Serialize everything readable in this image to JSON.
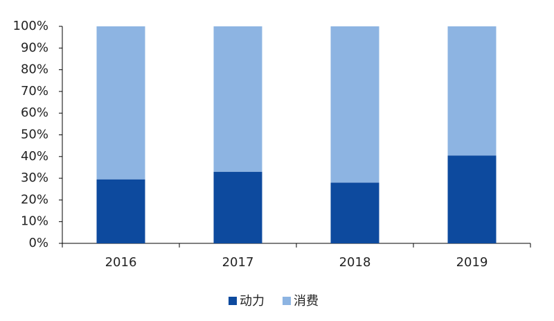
{
  "chart_data": {
    "type": "stacked_bar",
    "categories": [
      "2016",
      "2017",
      "2018",
      "2019"
    ],
    "series": [
      {
        "name": "动力",
        "color": "#0d4a9e",
        "values": [
          29.5,
          33,
          28,
          40.5
        ]
      },
      {
        "name": "消费",
        "color": "#8db4e2",
        "values": [
          70.5,
          67,
          72,
          59.5
        ]
      }
    ],
    "ylim": [
      0,
      100
    ],
    "yticks": [
      {
        "value": 0,
        "label": "0%"
      },
      {
        "value": 10,
        "label": "10%"
      },
      {
        "value": 20,
        "label": "20%"
      },
      {
        "value": 30,
        "label": "30%"
      },
      {
        "value": 40,
        "label": "40%"
      },
      {
        "value": 50,
        "label": "50%"
      },
      {
        "value": 60,
        "label": "60%"
      },
      {
        "value": 70,
        "label": "70%"
      },
      {
        "value": 80,
        "label": "80%"
      },
      {
        "value": 90,
        "label": "90%"
      },
      {
        "value": 100,
        "label": "100%"
      }
    ],
    "legend": "bottom"
  }
}
